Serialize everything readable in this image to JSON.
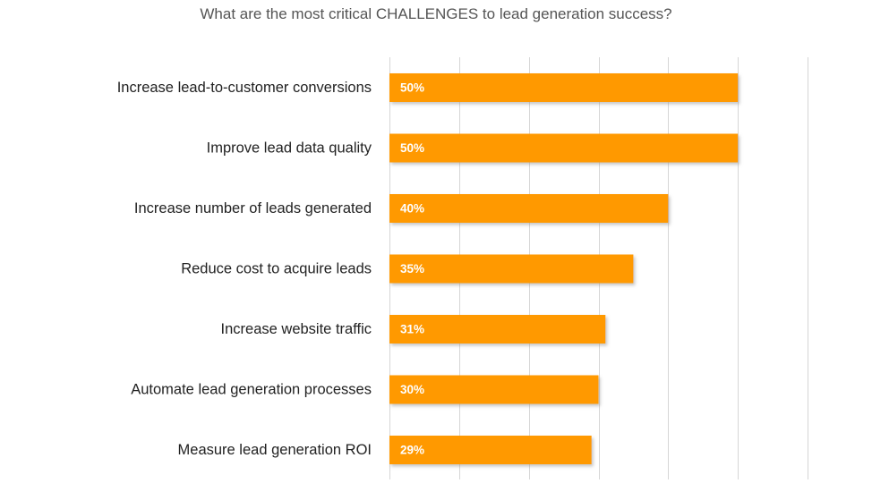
{
  "chart_data": {
    "type": "bar",
    "orientation": "horizontal",
    "title": "What are the most critical CHALLENGES to lead generation success?",
    "categories": [
      "Increase lead-to-customer conversions",
      "Improve lead data quality",
      "Increase number of leads generated",
      "Reduce cost to acquire leads",
      "Increase website traffic",
      "Automate lead generation processes",
      "Measure lead generation ROI"
    ],
    "values": [
      50,
      50,
      40,
      35,
      31,
      30,
      29
    ],
    "value_labels": [
      "50%",
      "50%",
      "40%",
      "35%",
      "31%",
      "30%",
      "29%"
    ],
    "unit": "%",
    "xlim": [
      0,
      60
    ],
    "grid_step": 10,
    "grid": true,
    "colors": {
      "bar": "#FF9900",
      "bar_shadow": "#b3b3b3",
      "grid": "#d6d6d6",
      "value_label": "#ffffff"
    }
  }
}
